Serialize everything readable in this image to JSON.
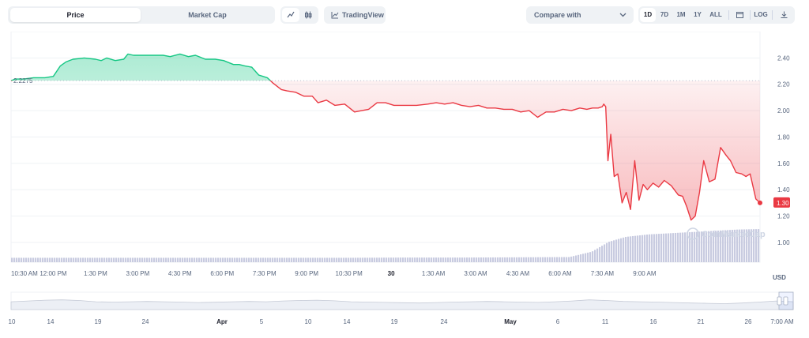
{
  "toolbar": {
    "tab_price": "Price",
    "tab_market_cap": "Market Cap",
    "line_icon": "line-chart-icon",
    "candle_icon": "candlestick-icon",
    "tradingview_label": "TradingView",
    "tradingview_icon": "tradingview-icon",
    "compare_label": "Compare with",
    "compare_icon": "chevron-down-icon",
    "ranges": [
      "1D",
      "7D",
      "1M",
      "1Y",
      "ALL"
    ],
    "active_range": "1D",
    "calendar_icon": "calendar-icon",
    "log_label": "LOG",
    "download_icon": "download-icon"
  },
  "chart": {
    "currency": "USD",
    "open_label": "2.2275",
    "last_label": "1.30",
    "watermark": "CoinMarketCap",
    "colors": {
      "up": "#16c784",
      "down": "#ea3943",
      "up_fill": "#16c784",
      "down_fill": "#ea3943",
      "volume": "#c8cbe0",
      "grid": "#eff2f5",
      "axis_text": "#58667e"
    }
  },
  "chart_data": {
    "type": "line",
    "title": "",
    "xlabel": "",
    "ylabel": "USD",
    "ylim": [
      0.85,
      2.6
    ],
    "yticks": [
      1.0,
      1.2,
      1.4,
      1.6,
      1.8,
      2.0,
      2.2,
      2.4
    ],
    "ytick_labels": [
      "1.00",
      "1.20",
      "1.40",
      "1.60",
      "1.80",
      "2.00",
      "2.20",
      "2.40"
    ],
    "reference_price": 2.2275,
    "xticks": [
      "10:30 AM",
      "12:00 PM",
      "1:30 PM",
      "3:00 PM",
      "4:30 PM",
      "6:00 PM",
      "7:30 PM",
      "9:00 PM",
      "10:30 PM",
      "30",
      "1:30 AM",
      "3:00 AM",
      "4:30 AM",
      "6:00 AM",
      "7:30 AM",
      "9:00 AM"
    ],
    "series": [
      {
        "name": "",
        "x_hours": [
          0,
          0.15,
          0.45,
          0.8,
          1.2,
          1.5,
          1.75,
          1.95,
          2.2,
          2.6,
          3.0,
          3.2,
          3.4,
          3.7,
          4.0,
          4.15,
          4.35,
          4.7,
          5.1,
          5.4,
          5.65,
          6.0,
          6.3,
          6.55,
          6.9,
          7.25,
          7.55,
          7.9,
          8.1,
          8.3,
          8.55,
          8.8,
          9.1,
          9.3,
          9.6,
          9.8,
          10.1,
          10.4,
          10.7,
          10.9,
          11.2,
          11.5,
          11.85,
          12.2,
          12.45,
          12.7,
          13.0,
          13.3,
          13.6,
          14.0,
          14.4,
          14.8,
          15.1,
          15.4,
          15.7,
          16.0,
          16.3,
          16.6,
          16.9,
          17.2,
          17.5,
          17.8,
          18.1,
          18.4,
          18.7,
          19.0,
          19.3,
          19.6,
          19.9,
          20.2,
          20.45,
          20.65,
          20.85,
          21.0,
          21.05,
          21.12,
          21.2,
          21.3,
          21.42,
          21.55,
          21.7,
          21.85,
          22.0,
          22.15,
          22.3,
          22.45,
          22.6,
          22.8,
          23.0,
          23.2,
          23.45,
          23.7,
          23.85,
          24.0,
          24.15,
          24.3,
          24.45,
          24.6,
          24.8,
          25.0,
          25.2,
          25.4,
          25.55,
          25.75,
          25.95,
          26.1,
          26.25,
          26.45,
          26.6
        ],
        "values": [
          2.2275,
          2.24,
          2.24,
          2.25,
          2.25,
          2.26,
          2.34,
          2.37,
          2.39,
          2.4,
          2.39,
          2.38,
          2.4,
          2.38,
          2.39,
          2.43,
          2.42,
          2.42,
          2.42,
          2.42,
          2.41,
          2.43,
          2.41,
          2.42,
          2.39,
          2.39,
          2.38,
          2.35,
          2.35,
          2.34,
          2.33,
          2.27,
          2.25,
          2.21,
          2.16,
          2.15,
          2.14,
          2.11,
          2.11,
          2.06,
          2.08,
          2.04,
          2.05,
          1.99,
          2.0,
          2.01,
          2.06,
          2.06,
          2.04,
          2.04,
          2.04,
          2.05,
          2.06,
          2.05,
          2.06,
          2.04,
          2.03,
          2.04,
          2.02,
          2.02,
          2.01,
          2.01,
          1.99,
          2.0,
          1.95,
          1.99,
          1.99,
          2.01,
          2.0,
          2.02,
          2.01,
          2.02,
          2.02,
          2.03,
          2.05,
          2.03,
          1.62,
          1.82,
          1.5,
          1.52,
          1.3,
          1.38,
          1.25,
          1.62,
          1.32,
          1.44,
          1.4,
          1.45,
          1.42,
          1.47,
          1.43,
          1.36,
          1.35,
          1.27,
          1.17,
          1.2,
          1.38,
          1.62,
          1.46,
          1.48,
          1.72,
          1.66,
          1.62,
          1.53,
          1.52,
          1.5,
          1.52,
          1.33,
          1.3
        ]
      }
    ],
    "volume": {
      "x_hours": [
        0,
        2,
        4,
        6,
        8,
        10,
        12,
        14,
        16,
        18,
        19.8,
        20.6,
        21.2,
        21.8,
        22.6,
        23.4,
        24.2,
        25.0,
        25.8,
        26.6
      ],
      "values": [
        0.05,
        0.05,
        0.05,
        0.05,
        0.05,
        0.05,
        0.05,
        0.06,
        0.06,
        0.07,
        0.08,
        0.3,
        0.7,
        0.9,
        1.0,
        1.05,
        1.1,
        1.15,
        1.2,
        1.22
      ]
    },
    "navigator": {
      "labels": [
        "10",
        "14",
        "19",
        "24",
        "Apr",
        "5",
        "10",
        "14",
        "19",
        "24",
        "May",
        "6",
        "11",
        "16",
        "21",
        "26",
        "7:00 AM"
      ],
      "values": [
        0.5,
        0.55,
        0.6,
        0.62,
        0.58,
        0.5,
        0.48,
        0.5,
        0.52,
        0.5,
        0.48,
        0.45,
        0.47,
        0.5,
        0.52,
        0.5,
        0.55,
        0.58,
        0.6,
        0.56,
        0.5,
        0.48,
        0.46,
        0.44,
        0.42,
        0.45,
        0.48,
        0.5,
        0.52,
        0.5,
        0.48,
        0.46,
        0.5,
        0.55,
        0.62,
        0.58,
        0.52,
        0.5,
        0.48,
        0.45,
        0.42,
        0.4,
        0.38,
        0.42,
        0.48,
        0.55,
        0.5
      ]
    }
  }
}
